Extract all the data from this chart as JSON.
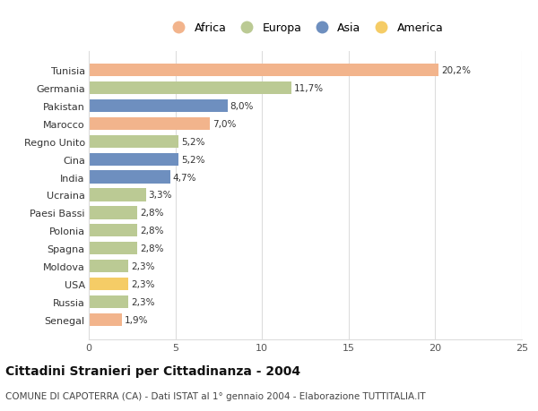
{
  "categories": [
    "Tunisia",
    "Germania",
    "Pakistan",
    "Marocco",
    "Regno Unito",
    "Cina",
    "India",
    "Ucraina",
    "Paesi Bassi",
    "Polonia",
    "Spagna",
    "Moldova",
    "USA",
    "Russia",
    "Senegal"
  ],
  "values": [
    20.2,
    11.7,
    8.0,
    7.0,
    5.2,
    5.2,
    4.7,
    3.3,
    2.8,
    2.8,
    2.8,
    2.3,
    2.3,
    2.3,
    1.9
  ],
  "labels": [
    "20,2%",
    "11,7%",
    "8,0%",
    "7,0%",
    "5,2%",
    "5,2%",
    "4,7%",
    "3,3%",
    "2,8%",
    "2,8%",
    "2,8%",
    "2,3%",
    "2,3%",
    "2,3%",
    "1,9%"
  ],
  "colors": [
    "#F2B48C",
    "#BBCA94",
    "#6E8FBF",
    "#F2B48C",
    "#BBCA94",
    "#6E8FBF",
    "#6E8FBF",
    "#BBCA94",
    "#BBCA94",
    "#BBCA94",
    "#BBCA94",
    "#BBCA94",
    "#F5CC66",
    "#BBCA94",
    "#F2B48C"
  ],
  "legend_labels": [
    "Africa",
    "Europa",
    "Asia",
    "America"
  ],
  "legend_colors": [
    "#F2B48C",
    "#BBCA94",
    "#6E8FBF",
    "#F5CC66"
  ],
  "title": "Cittadini Stranieri per Cittadinanza - 2004",
  "subtitle": "COMUNE DI CAPOTERRA (CA) - Dati ISTAT al 1° gennaio 2004 - Elaborazione TUTTITALIA.IT",
  "xlim": [
    0,
    25
  ],
  "xticks": [
    0,
    5,
    10,
    15,
    20,
    25
  ],
  "bg_color": "#FFFFFF",
  "grid_color": "#DDDDDD",
  "bar_height": 0.72,
  "label_fontsize": 7.5,
  "ytick_fontsize": 8.0,
  "xtick_fontsize": 8.0,
  "legend_fontsize": 9.0,
  "title_fontsize": 10.0,
  "subtitle_fontsize": 7.5
}
